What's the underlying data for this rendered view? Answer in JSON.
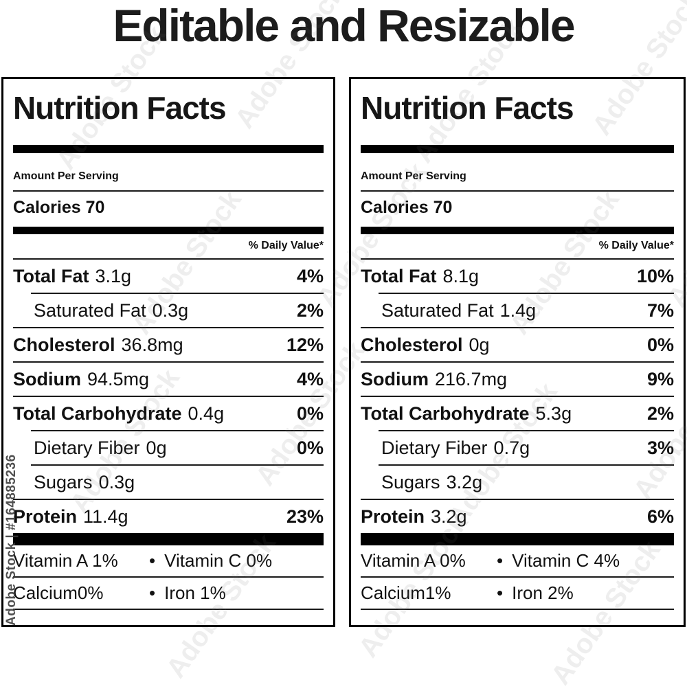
{
  "page_title": "Editable and Resizable",
  "bullet_glyph": "•",
  "watermark": {
    "tile_text": "Adobe Stock",
    "id_text": "Adobe Stock | #164885236"
  },
  "labels": [
    {
      "title": "Nutrition Facts",
      "amount_per_serving": "Amount Per Serving",
      "calories_label": "Calories",
      "calories_value": "70",
      "daily_value_note": "% Daily Value*",
      "rows": [
        {
          "name": "Total Fat",
          "amount": "3.1g",
          "daily_value": "4%"
        },
        {
          "name": "Saturated Fat",
          "amount": "0.3g",
          "daily_value": "2%"
        },
        {
          "name": "Cholesterol",
          "amount": "36.8mg",
          "daily_value": "12%"
        },
        {
          "name": "Sodium",
          "amount": "94.5mg",
          "daily_value": "4%"
        },
        {
          "name": "Total Carbohydrate",
          "amount": "0.4g",
          "daily_value": "0%"
        },
        {
          "name": "Dietary Fiber",
          "amount": "0g",
          "daily_value": "0%"
        },
        {
          "name": "Sugars",
          "amount": "0.3g",
          "daily_value": ""
        },
        {
          "name": "Protein",
          "amount": "11.4g",
          "daily_value": "23%"
        }
      ],
      "vitamins": [
        {
          "left": "Vitamin A 1%",
          "right": "Vitamin C 0%"
        },
        {
          "left": "Calcium0%",
          "right": "Iron 1%"
        }
      ]
    },
    {
      "title": "Nutrition Facts",
      "amount_per_serving": "Amount Per Serving",
      "calories_label": "Calories",
      "calories_value": "70",
      "daily_value_note": "% Daily Value*",
      "rows": [
        {
          "name": "Total Fat",
          "amount": "8.1g",
          "daily_value": "10%"
        },
        {
          "name": "Saturated Fat",
          "amount": "1.4g",
          "daily_value": "7%"
        },
        {
          "name": "Cholesterol",
          "amount": "0g",
          "daily_value": "0%"
        },
        {
          "name": "Sodium",
          "amount": "216.7mg",
          "daily_value": "9%"
        },
        {
          "name": "Total Carbohydrate",
          "amount": "5.3g",
          "daily_value": "2%"
        },
        {
          "name": "Dietary Fiber",
          "amount": "0.7g",
          "daily_value": "3%"
        },
        {
          "name": "Sugars",
          "amount": "3.2g",
          "daily_value": ""
        },
        {
          "name": "Protein",
          "amount": "3.2g",
          "daily_value": "6%"
        }
      ],
      "vitamins": [
        {
          "left": "Vitamin A 0%",
          "right": "Vitamin C 4%"
        },
        {
          "left": "Calcium1%",
          "right": "Iron 2%"
        }
      ]
    }
  ]
}
